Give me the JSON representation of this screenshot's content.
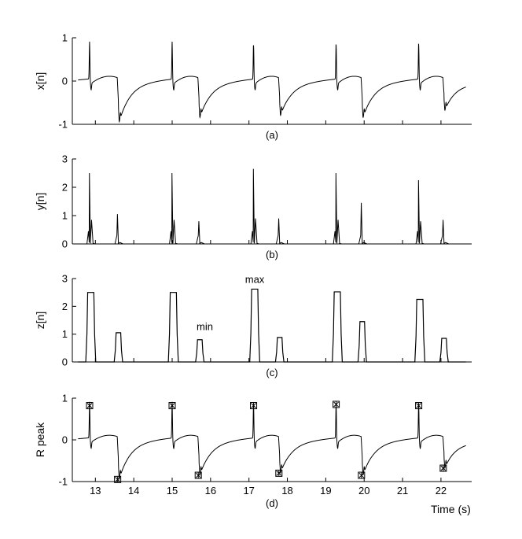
{
  "figure": {
    "xlabel": "Time (s)"
  },
  "chart_data": [
    {
      "type": "line",
      "panel_label": "(a)",
      "ylabel": "x[n]",
      "xlim": [
        12.4,
        22.8
      ],
      "ylim": [
        -1,
        1
      ],
      "yticks": [
        -1,
        0,
        1
      ],
      "beats": [
        {
          "r": 12.85,
          "r_amp": 0.82,
          "s": 13.6,
          "s_amp": -0.95
        },
        {
          "r": 15.0,
          "r_amp": 0.82,
          "s": 15.7,
          "s_amp": -0.85
        },
        {
          "r": 17.12,
          "r_amp": 0.82,
          "s": 17.8,
          "s_amp": -0.8
        },
        {
          "r": 19.27,
          "r_amp": 0.82,
          "s": 19.95,
          "s_amp": -0.85
        },
        {
          "r": 21.42,
          "r_amp": 0.82,
          "s": 22.08,
          "s_amp": -0.68
        }
      ],
      "series": [
        {
          "x_start": 12.55,
          "x_end": 22.65,
          "baseline": -0.05
        }
      ]
    },
    {
      "type": "line",
      "panel_label": "(b)",
      "ylabel": "y[n]",
      "xlim": [
        12.4,
        22.8
      ],
      "ylim": [
        0,
        3
      ],
      "yticks": [
        0,
        1,
        2,
        3
      ],
      "peaks": [
        {
          "x": 12.87,
          "y": 2.5,
          "side": 0.85
        },
        {
          "x": 13.6,
          "y": 1.05
        },
        {
          "x": 15.02,
          "y": 2.5,
          "side": 0.85
        },
        {
          "x": 15.72,
          "y": 0.8
        },
        {
          "x": 17.14,
          "y": 2.65,
          "side": 0.9
        },
        {
          "x": 17.8,
          "y": 0.9
        },
        {
          "x": 19.29,
          "y": 2.5,
          "side": 0.85
        },
        {
          "x": 19.95,
          "y": 1.45
        },
        {
          "x": 21.44,
          "y": 2.25,
          "side": 0.8
        },
        {
          "x": 22.08,
          "y": 0.85
        }
      ]
    },
    {
      "type": "line",
      "panel_label": "(c)",
      "ylabel": "z[n]",
      "xlim": [
        12.4,
        22.8
      ],
      "ylim": [
        0,
        3
      ],
      "yticks": [
        0,
        1,
        2,
        3
      ],
      "pulses": [
        {
          "x0": 12.78,
          "x1": 12.98,
          "y": 2.5
        },
        {
          "x0": 13.52,
          "x1": 13.68,
          "y": 1.05
        },
        {
          "x0": 14.93,
          "x1": 15.13,
          "y": 2.5
        },
        {
          "x0": 15.64,
          "x1": 15.8,
          "y": 0.8
        },
        {
          "x0": 17.05,
          "x1": 17.25,
          "y": 2.62
        },
        {
          "x0": 17.72,
          "x1": 17.88,
          "y": 0.88
        },
        {
          "x0": 19.2,
          "x1": 19.4,
          "y": 2.52
        },
        {
          "x0": 19.87,
          "x1": 20.03,
          "y": 1.45
        },
        {
          "x0": 21.35,
          "x1": 21.55,
          "y": 2.25
        },
        {
          "x0": 22.0,
          "x1": 22.16,
          "y": 0.85
        }
      ],
      "annotations": [
        {
          "text": "max",
          "x": 17.15,
          "y": 2.85
        },
        {
          "text": "min",
          "x": 15.85,
          "y": 1.15
        }
      ]
    },
    {
      "type": "line",
      "panel_label": "(d)",
      "ylabel": "R peak",
      "xlim": [
        12.4,
        22.8
      ],
      "ylim": [
        -1,
        1
      ],
      "yticks": [
        -1,
        0,
        1
      ],
      "xticks": [
        13,
        14,
        15,
        16,
        17,
        18,
        19,
        20,
        21,
        22
      ],
      "markers": [
        {
          "x": 12.85,
          "y": 0.82
        },
        {
          "x": 13.58,
          "y": -0.95
        },
        {
          "x": 15.0,
          "y": 0.82
        },
        {
          "x": 15.68,
          "y": -0.85
        },
        {
          "x": 17.12,
          "y": 0.82
        },
        {
          "x": 17.78,
          "y": -0.8
        },
        {
          "x": 19.27,
          "y": 0.85
        },
        {
          "x": 19.93,
          "y": -0.85
        },
        {
          "x": 21.42,
          "y": 0.82
        },
        {
          "x": 22.06,
          "y": -0.68
        }
      ]
    }
  ]
}
